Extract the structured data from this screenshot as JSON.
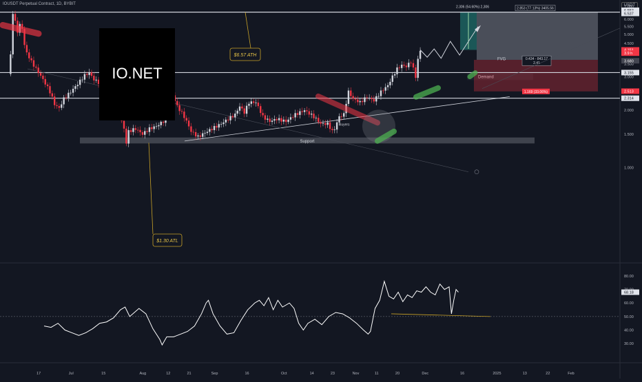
{
  "header": {
    "symbol": "IOUSDT Perpetual Contract, 1D, BYBIT",
    "currency": "USDT"
  },
  "logo_text": "IO.NET",
  "chart_data": [
    {
      "type": "candlestick",
      "title": "",
      "y_scale": "log",
      "ylim": [
        0.8,
        7.3
      ],
      "price_ticks": [
        7.0,
        6.0,
        5.5,
        5.0,
        4.5,
        3.5,
        3.0,
        2.0,
        1.5,
        1.0
      ],
      "price_tick_labels": [
        "7.000",
        "6.000",
        "5.500",
        "5.000",
        "4.500",
        "3.500",
        "3.000",
        "2.000",
        "1.500",
        "1.000"
      ],
      "x_ticks": [
        {
          "day": 6,
          "label": "17"
        },
        {
          "day": 20,
          "label": "Jul"
        },
        {
          "day": 34,
          "label": "15"
        },
        {
          "day": 51,
          "label": "Aug"
        },
        {
          "day": 62,
          "label": "12"
        },
        {
          "day": 71,
          "label": "21"
        },
        {
          "day": 82,
          "label": "Sep"
        },
        {
          "day": 96,
          "label": "16"
        },
        {
          "day": 112,
          "label": "Oct"
        },
        {
          "day": 124,
          "label": "14"
        },
        {
          "day": 133,
          "label": "23"
        },
        {
          "day": 143,
          "label": "Nov"
        },
        {
          "day": 152,
          "label": "11"
        },
        {
          "day": 161,
          "label": "20"
        },
        {
          "day": 173,
          "label": "Dec"
        },
        {
          "day": 189,
          "label": "16"
        },
        {
          "day": 204,
          "label": "2025"
        },
        {
          "day": 216,
          "label": "13"
        },
        {
          "day": 226,
          "label": "22"
        },
        {
          "day": 236,
          "label": "Feb"
        }
      ],
      "horizontal_levels": [
        {
          "price": 6.552,
          "label": "6.552"
        },
        {
          "price": 3.155,
          "label": "3.155"
        },
        {
          "price": 2.314,
          "label": "2.314"
        }
      ],
      "price_badges": [
        {
          "price": 6.7,
          "label": "6.552"
        },
        {
          "price": 6.45,
          "label": "6.537"
        },
        {
          "price": 4.15,
          "label": "4.151"
        },
        {
          "price": 3.99,
          "label": "3.9 h"
        },
        {
          "price": 3.64,
          "label": "3.680"
        },
        {
          "price": 2.52,
          "label": "2.513"
        }
      ],
      "annotations": {
        "ath": "$6.57 ATH",
        "atl": "$1.30 ATL",
        "support": "Support",
        "demand": "Demand",
        "fvg": "FVG",
        "buyers": "Buyers",
        "measure_green": "2.306 (54.60%) 2,306",
        "measure_top": "2.853 (77.13%) 3405.56",
        "measure_mid": "0.434 - 843.17",
        "measure_mid2": "2.41",
        "measure_red": "1.169 (33.06%)"
      },
      "anchor_points": [
        {
          "day": 0,
          "price": 3.1
        },
        {
          "day": 1,
          "price": 3.9
        },
        {
          "day": 2,
          "price": 6.5
        },
        {
          "day": 3,
          "price": 5.8
        },
        {
          "day": 4,
          "price": 5.2
        },
        {
          "day": 5,
          "price": 5.6
        },
        {
          "day": 6,
          "price": 5.4
        },
        {
          "day": 7,
          "price": 4.4
        },
        {
          "day": 8,
          "price": 4.0
        },
        {
          "day": 10,
          "price": 3.6
        },
        {
          "day": 12,
          "price": 3.3
        },
        {
          "day": 15,
          "price": 2.9
        },
        {
          "day": 18,
          "price": 2.5
        },
        {
          "day": 20,
          "price": 2.15
        },
        {
          "day": 22,
          "price": 2.05
        },
        {
          "day": 24,
          "price": 2.3
        },
        {
          "day": 27,
          "price": 2.5
        },
        {
          "day": 30,
          "price": 2.75
        },
        {
          "day": 33,
          "price": 3.05
        },
        {
          "day": 35,
          "price": 3.15
        },
        {
          "day": 37,
          "price": 2.9
        },
        {
          "day": 40,
          "price": 2.75
        },
        {
          "day": 42,
          "price": 3.0
        },
        {
          "day": 44,
          "price": 2.7
        },
        {
          "day": 46,
          "price": 2.3
        },
        {
          "day": 48,
          "price": 1.9
        },
        {
          "day": 50,
          "price": 1.6
        },
        {
          "day": 51,
          "price": 1.35
        },
        {
          "day": 52,
          "price": 1.55
        },
        {
          "day": 55,
          "price": 1.6
        },
        {
          "day": 58,
          "price": 1.5
        },
        {
          "day": 61,
          "price": 1.6
        },
        {
          "day": 64,
          "price": 1.65
        },
        {
          "day": 67,
          "price": 1.75
        },
        {
          "day": 70,
          "price": 2.05
        },
        {
          "day": 71,
          "price": 2.4
        },
        {
          "day": 73,
          "price": 2.1
        },
        {
          "day": 76,
          "price": 1.85
        },
        {
          "day": 79,
          "price": 1.55
        },
        {
          "day": 82,
          "price": 1.45
        },
        {
          "day": 84,
          "price": 1.5
        },
        {
          "day": 88,
          "price": 1.6
        },
        {
          "day": 92,
          "price": 1.7
        },
        {
          "day": 95,
          "price": 1.8
        },
        {
          "day": 98,
          "price": 1.9
        },
        {
          "day": 100,
          "price": 2.1
        },
        {
          "day": 102,
          "price": 1.95
        },
        {
          "day": 104,
          "price": 2.2
        },
        {
          "day": 107,
          "price": 2.2
        },
        {
          "day": 110,
          "price": 1.85
        },
        {
          "day": 113,
          "price": 1.75
        },
        {
          "day": 116,
          "price": 1.8
        },
        {
          "day": 120,
          "price": 1.75
        },
        {
          "day": 124,
          "price": 1.9
        },
        {
          "day": 128,
          "price": 2.0
        },
        {
          "day": 132,
          "price": 1.85
        },
        {
          "day": 135,
          "price": 1.7
        },
        {
          "day": 138,
          "price": 1.7
        },
        {
          "day": 140,
          "price": 1.55
        },
        {
          "day": 141,
          "price": 1.6
        },
        {
          "day": 143,
          "price": 1.85
        },
        {
          "day": 145,
          "price": 1.9
        },
        {
          "day": 147,
          "price": 2.5
        },
        {
          "day": 149,
          "price": 2.3
        },
        {
          "day": 152,
          "price": 2.2
        },
        {
          "day": 155,
          "price": 2.35
        },
        {
          "day": 158,
          "price": 2.25
        },
        {
          "day": 161,
          "price": 2.5
        },
        {
          "day": 164,
          "price": 2.7
        },
        {
          "day": 166,
          "price": 3.0
        },
        {
          "day": 168,
          "price": 3.3
        },
        {
          "day": 170,
          "price": 3.45
        },
        {
          "day": 172,
          "price": 3.4
        },
        {
          "day": 174,
          "price": 3.6
        },
        {
          "day": 176,
          "price": 3.0
        },
        {
          "day": 177,
          "price": 3.7
        },
        {
          "day": 178,
          "price": 4.1
        }
      ],
      "projection_path": [
        {
          "day": 178,
          "price": 4.15
        },
        {
          "day": 181,
          "price": 3.8
        },
        {
          "day": 184,
          "price": 4.2
        },
        {
          "day": 187,
          "price": 3.75
        },
        {
          "day": 191,
          "price": 4.6
        },
        {
          "day": 195,
          "price": 3.9
        },
        {
          "day": 203,
          "price": 5.5
        }
      ]
    },
    {
      "type": "line",
      "title": "",
      "ylim": [
        25,
        82
      ],
      "y_ticks": [
        80,
        70,
        60,
        50,
        40,
        30
      ],
      "y_tick_labels": [
        "80.00",
        "70.00",
        "60.00",
        "50.00",
        "40.00",
        "30.00"
      ],
      "reference_level": 50,
      "current_value_label": "68.18",
      "anchor_points": [
        {
          "day": 0,
          "value": 43
        },
        {
          "day": 3,
          "value": 42
        },
        {
          "day": 6,
          "value": 45
        },
        {
          "day": 9,
          "value": 40
        },
        {
          "day": 12,
          "value": 38
        },
        {
          "day": 15,
          "value": 36
        },
        {
          "day": 18,
          "value": 38
        },
        {
          "day": 21,
          "value": 41
        },
        {
          "day": 24,
          "value": 45
        },
        {
          "day": 27,
          "value": 46
        },
        {
          "day": 30,
          "value": 49
        },
        {
          "day": 33,
          "value": 55
        },
        {
          "day": 35,
          "value": 57
        },
        {
          "day": 37,
          "value": 50
        },
        {
          "day": 39,
          "value": 53
        },
        {
          "day": 41,
          "value": 56
        },
        {
          "day": 44,
          "value": 52
        },
        {
          "day": 47,
          "value": 41
        },
        {
          "day": 50,
          "value": 33
        },
        {
          "day": 51,
          "value": 29
        },
        {
          "day": 53,
          "value": 35
        },
        {
          "day": 56,
          "value": 35
        },
        {
          "day": 59,
          "value": 37
        },
        {
          "day": 62,
          "value": 39
        },
        {
          "day": 65,
          "value": 43
        },
        {
          "day": 68,
          "value": 52
        },
        {
          "day": 70,
          "value": 60
        },
        {
          "day": 71,
          "value": 62
        },
        {
          "day": 73,
          "value": 52
        },
        {
          "day": 76,
          "value": 43
        },
        {
          "day": 79,
          "value": 37
        },
        {
          "day": 82,
          "value": 38
        },
        {
          "day": 85,
          "value": 47
        },
        {
          "day": 88,
          "value": 55
        },
        {
          "day": 91,
          "value": 60
        },
        {
          "day": 93,
          "value": 62
        },
        {
          "day": 95,
          "value": 58
        },
        {
          "day": 97,
          "value": 64
        },
        {
          "day": 99,
          "value": 55
        },
        {
          "day": 101,
          "value": 62
        },
        {
          "day": 103,
          "value": 57
        },
        {
          "day": 106,
          "value": 60
        },
        {
          "day": 108,
          "value": 56
        },
        {
          "day": 110,
          "value": 45
        },
        {
          "day": 112,
          "value": 40
        },
        {
          "day": 114,
          "value": 45
        },
        {
          "day": 117,
          "value": 48
        },
        {
          "day": 120,
          "value": 44
        },
        {
          "day": 123,
          "value": 50
        },
        {
          "day": 126,
          "value": 53
        },
        {
          "day": 129,
          "value": 52
        },
        {
          "day": 132,
          "value": 49
        },
        {
          "day": 135,
          "value": 45
        },
        {
          "day": 138,
          "value": 40
        },
        {
          "day": 140,
          "value": 37
        },
        {
          "day": 141,
          "value": 39
        },
        {
          "day": 143,
          "value": 56
        },
        {
          "day": 145,
          "value": 62
        },
        {
          "day": 147,
          "value": 76
        },
        {
          "day": 149,
          "value": 65
        },
        {
          "day": 151,
          "value": 63
        },
        {
          "day": 153,
          "value": 68
        },
        {
          "day": 155,
          "value": 61
        },
        {
          "day": 157,
          "value": 66
        },
        {
          "day": 159,
          "value": 64
        },
        {
          "day": 161,
          "value": 69
        },
        {
          "day": 163,
          "value": 68
        },
        {
          "day": 165,
          "value": 72
        },
        {
          "day": 167,
          "value": 68
        },
        {
          "day": 169,
          "value": 66
        },
        {
          "day": 171,
          "value": 74
        },
        {
          "day": 173,
          "value": 70
        },
        {
          "day": 175,
          "value": 72
        },
        {
          "day": 176,
          "value": 52
        },
        {
          "day": 177,
          "value": 62
        },
        {
          "day": 178,
          "value": 70
        },
        {
          "day": 179,
          "value": 68
        }
      ]
    }
  ]
}
